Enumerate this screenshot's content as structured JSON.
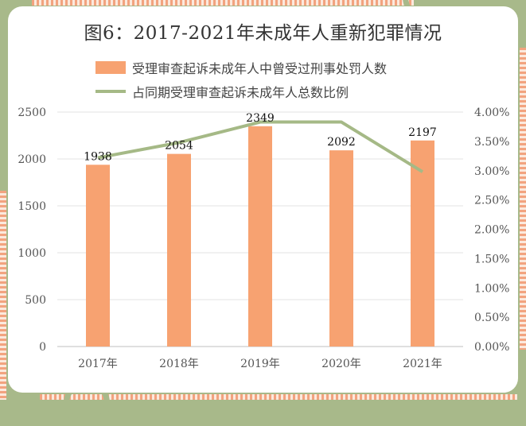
{
  "chart_data": {
    "type": "bar",
    "title": "图6：2017-2021年未成年人重新犯罪情况",
    "categories": [
      "2017年",
      "2018年",
      "2019年",
      "2020年",
      "2021年"
    ],
    "series": [
      {
        "name": "受理审查起诉未成年人中曾受过刑事处罚人数",
        "type": "bar",
        "axis": "left",
        "values": [
          1938,
          2054,
          2349,
          2092,
          2197
        ],
        "color": "#f7a271"
      },
      {
        "name": "占同期受理审查起诉未成年人总数比例",
        "type": "line",
        "axis": "right",
        "values": [
          3.22,
          3.48,
          3.83,
          3.83,
          2.98
        ],
        "color": "#a5b986"
      }
    ],
    "y_left": {
      "min": 0,
      "max": 2500,
      "ticks": [
        "0",
        "500",
        "1000",
        "1500",
        "2000",
        "2500"
      ]
    },
    "y_right": {
      "min": 0,
      "max": 4,
      "ticks": [
        "0.00%",
        "0.50%",
        "1.00%",
        "1.50%",
        "2.00%",
        "2.50%",
        "3.00%",
        "3.50%",
        "4.00%"
      ]
    },
    "grid": true,
    "legend_position": "top"
  }
}
